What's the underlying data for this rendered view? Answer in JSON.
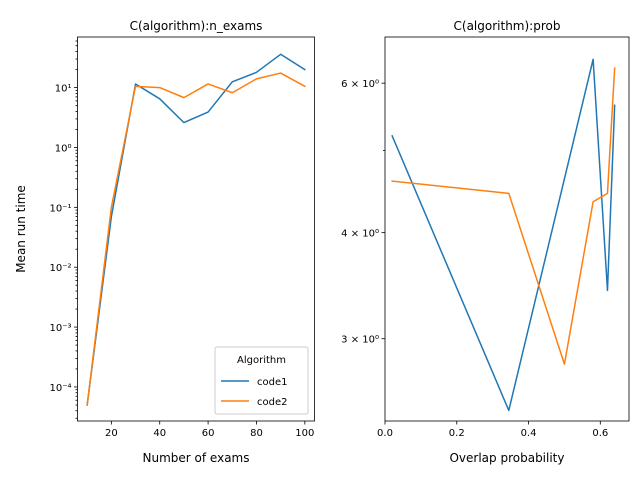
{
  "chart_data": [
    {
      "type": "line",
      "title": "C(algorithm):n_exams",
      "xlabel": "Number of exams",
      "ylabel": "Mean run time",
      "yscale": "log",
      "xlim": [
        6,
        104
      ],
      "ylim": [
        2.7e-05,
        70
      ],
      "x_ticks": [
        20,
        40,
        60,
        80,
        100
      ],
      "y_ticks": [
        0.0001,
        0.001,
        0.01,
        0.1,
        1,
        10
      ],
      "x_tick_labels": [
        "20",
        "40",
        "60",
        "80",
        "100"
      ],
      "y_tick_labels": [
        "10⁻⁴",
        "10⁻³",
        "10⁻²",
        "10⁻¹",
        "10⁰",
        "10¹"
      ],
      "legend": {
        "title": "Algorithm",
        "position": "lower-right"
      },
      "grid": false,
      "series": [
        {
          "name": "code1",
          "color": "#1f77b4",
          "x": [
            10,
            20,
            30,
            40,
            50,
            60,
            70,
            80,
            90,
            100
          ],
          "y": [
            5e-05,
            0.07,
            11.5,
            6.5,
            2.6,
            3.9,
            12.5,
            18,
            36,
            20
          ]
        },
        {
          "name": "code2",
          "color": "#ff7f0e",
          "x": [
            10,
            20,
            30,
            40,
            50,
            60,
            70,
            80,
            90,
            100
          ],
          "y": [
            5e-05,
            0.1,
            10.5,
            10,
            6.8,
            11.5,
            8.2,
            14,
            17.5,
            10.5
          ]
        }
      ]
    },
    {
      "type": "line",
      "title": "C(algorithm):prob",
      "xlabel": "Overlap probability",
      "ylabel": "",
      "yscale": "log",
      "xlim": [
        -0.0,
        0.68
      ],
      "ylim": [
        2.4,
        6.8
      ],
      "x_ticks": [
        0.0,
        0.2,
        0.4,
        0.6
      ],
      "y_ticks": [
        3,
        4,
        6
      ],
      "x_tick_labels": [
        "0.0",
        "0.2",
        "0.4",
        "0.6"
      ],
      "y_tick_labels": [
        "3 × 10⁰",
        "4 × 10⁰",
        "6 × 10⁰"
      ],
      "grid": false,
      "series": [
        {
          "name": "code1",
          "color": "#1f77b4",
          "x": [
            0.02,
            0.345,
            0.58,
            0.62,
            0.64
          ],
          "y": [
            5.2,
            2.47,
            6.4,
            3.42,
            5.65
          ]
        },
        {
          "name": "code2",
          "color": "#ff7f0e",
          "x": [
            0.02,
            0.345,
            0.5,
            0.58,
            0.62,
            0.64
          ],
          "y": [
            4.6,
            4.45,
            2.8,
            4.35,
            4.45,
            6.25
          ]
        }
      ]
    }
  ]
}
